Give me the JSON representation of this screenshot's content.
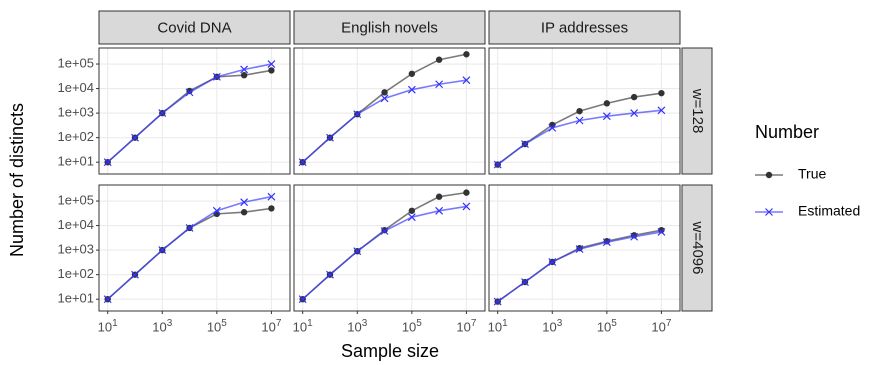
{
  "x_label": "Sample size",
  "y_label": "Number of distincts",
  "legend": {
    "title": "Number"
  },
  "facet_cols": [
    "Covid DNA",
    "English novels",
    "IP addresses"
  ],
  "facet_rows": [
    "w=128",
    "w=4096"
  ],
  "chart_data": [
    {
      "type": "line",
      "log_x": true,
      "log_y": true,
      "grid": true,
      "x": [
        10,
        100,
        1000,
        10000,
        100000,
        1000000,
        10000000
      ],
      "series": [
        {
          "name": "True",
          "color": "#333333",
          "marker": "circle",
          "values": [
            10,
            100,
            1000,
            8000,
            30000,
            35000,
            55000
          ]
        },
        {
          "name": "Estimated",
          "color": "#3333ff",
          "marker": "x",
          "values": [
            10,
            100,
            1000,
            7000,
            30000,
            60000,
            100000
          ]
        }
      ],
      "xlim": [
        4.8,
        48000000
      ],
      "ylim": [
        3.3,
        450000
      ],
      "xticks": [
        {
          "value": 10,
          "label": "10^1"
        },
        {
          "value": 1000,
          "label": "10^3"
        },
        {
          "value": 100000,
          "label": "10^5"
        },
        {
          "value": 10000000,
          "label": "10^7"
        }
      ],
      "yticks": [
        {
          "value": 10,
          "label": "1e+01"
        },
        {
          "value": 100,
          "label": "1e+02"
        },
        {
          "value": 1000,
          "label": "1e+03"
        },
        {
          "value": 10000,
          "label": "1e+04"
        },
        {
          "value": 100000,
          "label": "1e+05"
        }
      ]
    },
    {
      "type": "line",
      "log_x": true,
      "log_y": true,
      "grid": true,
      "x": [
        10,
        100,
        1000,
        10000,
        100000,
        1000000,
        10000000
      ],
      "series": [
        {
          "name": "True",
          "color": "#333333",
          "marker": "circle",
          "values": [
            10,
            100,
            900,
            7000,
            40000,
            150000,
            250000
          ]
        },
        {
          "name": "Estimated",
          "color": "#3333ff",
          "marker": "x",
          "values": [
            10,
            100,
            900,
            4000,
            9000,
            15000,
            22000
          ]
        }
      ],
      "xlim": [
        4.8,
        48000000
      ],
      "ylim": [
        3.3,
        450000
      ],
      "xticks": [
        {
          "value": 10,
          "label": "10^1"
        },
        {
          "value": 1000,
          "label": "10^3"
        },
        {
          "value": 100000,
          "label": "10^5"
        },
        {
          "value": 10000000,
          "label": "10^7"
        }
      ],
      "yticks": [
        {
          "value": 10,
          "label": "1e+01"
        },
        {
          "value": 100,
          "label": "1e+02"
        },
        {
          "value": 1000,
          "label": "1e+03"
        },
        {
          "value": 10000,
          "label": "1e+04"
        },
        {
          "value": 100000,
          "label": "1e+05"
        }
      ]
    },
    {
      "type": "line",
      "log_x": true,
      "log_y": true,
      "grid": true,
      "x": [
        10,
        100,
        1000,
        10000,
        100000,
        1000000,
        10000000
      ],
      "series": [
        {
          "name": "True",
          "color": "#333333",
          "marker": "circle",
          "values": [
            8,
            55,
            330,
            1200,
            2500,
            4500,
            6500
          ]
        },
        {
          "name": "Estimated",
          "color": "#3333ff",
          "marker": "x",
          "values": [
            8,
            55,
            250,
            500,
            750,
            1000,
            1300
          ]
        }
      ],
      "xlim": [
        4.8,
        48000000
      ],
      "ylim": [
        3.3,
        450000
      ],
      "xticks": [
        {
          "value": 10,
          "label": "10^1"
        },
        {
          "value": 1000,
          "label": "10^3"
        },
        {
          "value": 100000,
          "label": "10^5"
        },
        {
          "value": 10000000,
          "label": "10^7"
        }
      ],
      "yticks": [
        {
          "value": 10,
          "label": "1e+01"
        },
        {
          "value": 100,
          "label": "1e+02"
        },
        {
          "value": 1000,
          "label": "1e+03"
        },
        {
          "value": 10000,
          "label": "1e+04"
        },
        {
          "value": 100000,
          "label": "1e+05"
        }
      ]
    },
    {
      "type": "line",
      "log_x": true,
      "log_y": true,
      "grid": true,
      "x": [
        10,
        100,
        1000,
        10000,
        100000,
        1000000,
        10000000
      ],
      "series": [
        {
          "name": "True",
          "color": "#333333",
          "marker": "circle",
          "values": [
            10,
            100,
            1000,
            8000,
            30000,
            35000,
            50000
          ]
        },
        {
          "name": "Estimated",
          "color": "#3333ff",
          "marker": "x",
          "values": [
            10,
            100,
            1000,
            8000,
            40000,
            90000,
            150000
          ]
        }
      ],
      "xlim": [
        4.8,
        48000000
      ],
      "ylim": [
        3.3,
        450000
      ],
      "xticks": [
        {
          "value": 10,
          "label": "10^1"
        },
        {
          "value": 1000,
          "label": "10^3"
        },
        {
          "value": 100000,
          "label": "10^5"
        },
        {
          "value": 10000000,
          "label": "10^7"
        }
      ],
      "yticks": [
        {
          "value": 10,
          "label": "1e+01"
        },
        {
          "value": 100,
          "label": "1e+02"
        },
        {
          "value": 1000,
          "label": "1e+03"
        },
        {
          "value": 10000,
          "label": "1e+04"
        },
        {
          "value": 100000,
          "label": "1e+05"
        }
      ]
    },
    {
      "type": "line",
      "log_x": true,
      "log_y": true,
      "grid": true,
      "x": [
        10,
        100,
        1000,
        10000,
        100000,
        1000000,
        10000000
      ],
      "series": [
        {
          "name": "True",
          "color": "#333333",
          "marker": "circle",
          "values": [
            10,
            100,
            900,
            6500,
            40000,
            150000,
            220000
          ]
        },
        {
          "name": "Estimated",
          "color": "#3333ff",
          "marker": "x",
          "values": [
            10,
            100,
            900,
            6000,
            22000,
            40000,
            60000
          ]
        }
      ],
      "xlim": [
        4.8,
        48000000
      ],
      "ylim": [
        3.3,
        450000
      ],
      "xticks": [
        {
          "value": 10,
          "label": "10^1"
        },
        {
          "value": 1000,
          "label": "10^3"
        },
        {
          "value": 100000,
          "label": "10^5"
        },
        {
          "value": 10000000,
          "label": "10^7"
        }
      ],
      "yticks": [
        {
          "value": 10,
          "label": "1e+01"
        },
        {
          "value": 100,
          "label": "1e+02"
        },
        {
          "value": 1000,
          "label": "1e+03"
        },
        {
          "value": 10000,
          "label": "1e+04"
        },
        {
          "value": 100000,
          "label": "1e+05"
        }
      ]
    },
    {
      "type": "line",
      "log_x": true,
      "log_y": true,
      "grid": true,
      "x": [
        10,
        100,
        1000,
        10000,
        100000,
        1000000,
        10000000
      ],
      "series": [
        {
          "name": "True",
          "color": "#333333",
          "marker": "circle",
          "values": [
            8,
            50,
            330,
            1200,
            2300,
            4000,
            6500
          ]
        },
        {
          "name": "Estimated",
          "color": "#3333ff",
          "marker": "x",
          "values": [
            8,
            50,
            330,
            1100,
            2100,
            3500,
            5500
          ]
        }
      ],
      "xlim": [
        4.8,
        48000000
      ],
      "ylim": [
        3.3,
        450000
      ],
      "xticks": [
        {
          "value": 10,
          "label": "10^1"
        },
        {
          "value": 1000,
          "label": "10^3"
        },
        {
          "value": 100000,
          "label": "10^5"
        },
        {
          "value": 10000000,
          "label": "10^7"
        }
      ],
      "yticks": [
        {
          "value": 10,
          "label": "1e+01"
        },
        {
          "value": 100,
          "label": "1e+02"
        },
        {
          "value": 1000,
          "label": "1e+03"
        },
        {
          "value": 10000,
          "label": "1e+04"
        },
        {
          "value": 100000,
          "label": "1e+05"
        }
      ]
    }
  ]
}
